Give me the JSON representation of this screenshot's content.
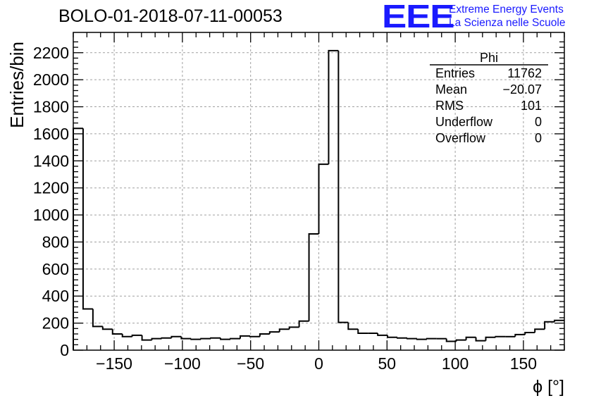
{
  "title": "BOLO-01-2018-07-11-00053",
  "logo": {
    "mark": "EEE",
    "line1": "Extreme Energy Events",
    "line2": "La Scienza nelle Scuole",
    "color": "#1a1aff"
  },
  "stats": {
    "name": "Phi",
    "rows": [
      {
        "label": "Entries",
        "value": "11762"
      },
      {
        "label": "Mean",
        "value": "−20.07"
      },
      {
        "label": "RMS",
        "value": "101"
      },
      {
        "label": "Underflow",
        "value": "0"
      },
      {
        "label": "Overflow",
        "value": "0"
      }
    ]
  },
  "chart_data": {
    "type": "histogram",
    "title": "BOLO-01-2018-07-11-00053",
    "xlabel": "ϕ [°]",
    "ylabel": "Entries/bin",
    "xlim": [
      -180,
      180
    ],
    "ylim": [
      0,
      2350
    ],
    "grid": true,
    "xticks": [
      -150,
      -100,
      -50,
      0,
      50,
      100,
      150
    ],
    "xtick_labels": [
      "−150",
      "−100",
      "−50",
      "0",
      "50",
      "100",
      "150"
    ],
    "yticks": [
      0,
      200,
      400,
      600,
      800,
      1000,
      1200,
      1400,
      1600,
      1800,
      2000,
      2200
    ],
    "bin_width": 7.2,
    "values": [
      1640,
      305,
      175,
      155,
      120,
      100,
      110,
      75,
      85,
      90,
      100,
      85,
      80,
      85,
      90,
      80,
      85,
      105,
      100,
      120,
      135,
      155,
      170,
      215,
      860,
      1375,
      2215,
      205,
      155,
      125,
      125,
      110,
      95,
      90,
      85,
      80,
      85,
      85,
      65,
      75,
      95,
      70,
      95,
      100,
      100,
      115,
      130,
      155,
      210,
      220
    ]
  }
}
